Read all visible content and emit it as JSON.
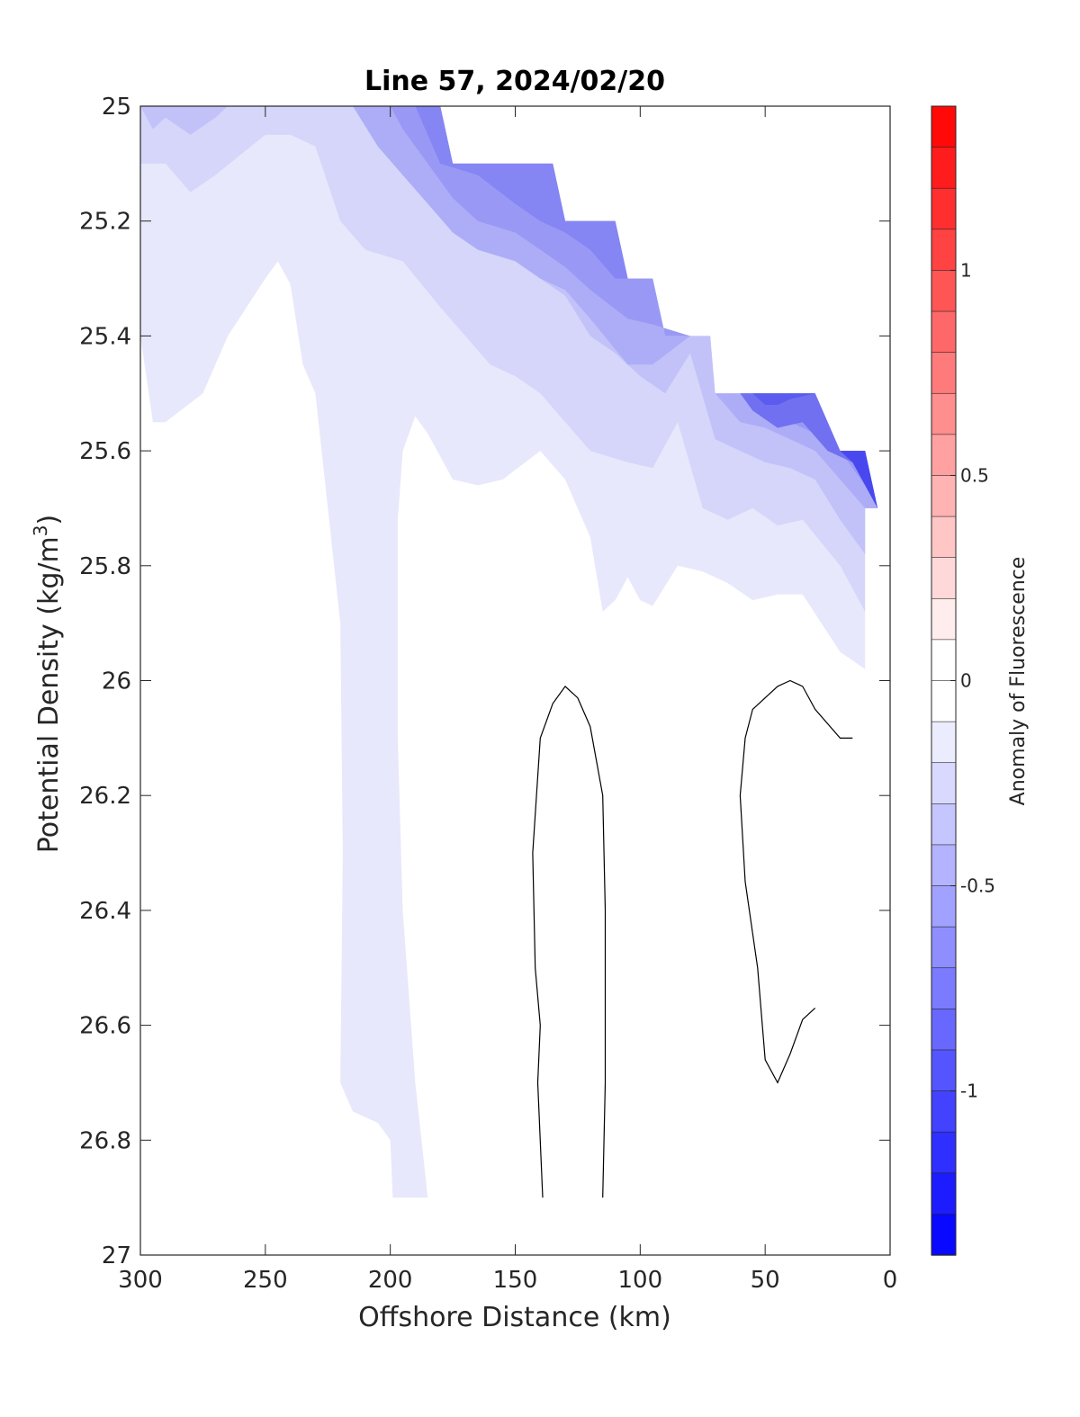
{
  "chart_data": {
    "type": "contour",
    "title": "Line 57, 2024/02/20",
    "xlabel": "Offshore Distance (km)",
    "ylabel_main": "Potential Density (kg/m",
    "ylabel_sup": "3",
    "ylabel_end": ")",
    "xlim": [
      300,
      0
    ],
    "ylim": [
      25,
      27
    ],
    "x_ticks": [
      300,
      250,
      200,
      150,
      100,
      50,
      0
    ],
    "y_ticks": [
      25,
      25.2,
      25.4,
      25.6,
      25.8,
      26,
      26.2,
      26.4,
      26.6,
      26.8,
      27
    ],
    "colorbar": {
      "label": "Anomaly of Fluorescence",
      "range": [
        -1.4,
        1.4
      ],
      "levels": 28,
      "ticks": [
        1,
        0.5,
        0,
        -0.5,
        -1
      ],
      "colors": {
        "negative": "#0000ff",
        "zero": "#ffffff",
        "positive": "#ff0000"
      }
    },
    "bands": [
      {
        "level": -0.1,
        "color": "#e8e8fc",
        "outline": [
          [
            300,
            25
          ],
          [
            300,
            25.4
          ],
          [
            295,
            25.55
          ],
          [
            290,
            25.55
          ],
          [
            275,
            25.5
          ],
          [
            265,
            25.4
          ],
          [
            250,
            25.3
          ],
          [
            245,
            25.27
          ],
          [
            240,
            25.31
          ],
          [
            235,
            25.45
          ],
          [
            230,
            25.5
          ],
          [
            225,
            25.7
          ],
          [
            220,
            25.9
          ],
          [
            219,
            26.3
          ],
          [
            220,
            26.7
          ],
          [
            215,
            26.75
          ],
          [
            205,
            26.77
          ],
          [
            200,
            26.8
          ],
          [
            199,
            26.9
          ],
          [
            185,
            26.9
          ],
          [
            190,
            26.7
          ],
          [
            195,
            26.4
          ],
          [
            197,
            26.1
          ],
          [
            197,
            25.72
          ],
          [
            195,
            25.6
          ],
          [
            190,
            25.54
          ],
          [
            185,
            25.57
          ],
          [
            175,
            25.65
          ],
          [
            165,
            25.66
          ],
          [
            155,
            25.65
          ],
          [
            140,
            25.6
          ],
          [
            130,
            25.65
          ],
          [
            120,
            25.75
          ],
          [
            115,
            25.88
          ],
          [
            110,
            25.86
          ],
          [
            105,
            25.82
          ],
          [
            100,
            25.86
          ],
          [
            95,
            25.87
          ],
          [
            85,
            25.8
          ],
          [
            75,
            25.81
          ],
          [
            65,
            25.83
          ],
          [
            55,
            25.86
          ],
          [
            45,
            25.85
          ],
          [
            35,
            25.85
          ],
          [
            20,
            25.95
          ],
          [
            10,
            25.98
          ],
          [
            10,
            25.7
          ],
          [
            5,
            25.7
          ],
          [
            10,
            25.6
          ],
          [
            20,
            25.6
          ],
          [
            30,
            25.5
          ],
          [
            70,
            25.5
          ],
          [
            72,
            25.4
          ],
          [
            90,
            25.4
          ],
          [
            95,
            25.3
          ],
          [
            105,
            25.3
          ],
          [
            110,
            25.2
          ],
          [
            130,
            25.2
          ],
          [
            135,
            25.1
          ],
          [
            175,
            25.1
          ],
          [
            180,
            25
          ]
        ]
      },
      {
        "level": -0.2,
        "color": "#d6d6fa",
        "outline": [
          [
            300,
            25
          ],
          [
            300,
            25.1
          ],
          [
            290,
            25.1
          ],
          [
            280,
            25.15
          ],
          [
            270,
            25.12
          ],
          [
            250,
            25.05
          ],
          [
            240,
            25.05
          ],
          [
            230,
            25.07
          ],
          [
            220,
            25.2
          ],
          [
            210,
            25.25
          ],
          [
            195,
            25.27
          ],
          [
            180,
            25.35
          ],
          [
            170,
            25.4
          ],
          [
            160,
            25.45
          ],
          [
            150,
            25.47
          ],
          [
            140,
            25.5
          ],
          [
            130,
            25.55
          ],
          [
            120,
            25.6
          ],
          [
            105,
            25.62
          ],
          [
            95,
            25.63
          ],
          [
            85,
            25.55
          ],
          [
            75,
            25.7
          ],
          [
            65,
            25.72
          ],
          [
            55,
            25.7
          ],
          [
            45,
            25.73
          ],
          [
            35,
            25.72
          ],
          [
            20,
            25.8
          ],
          [
            10,
            25.88
          ],
          [
            10,
            25.7
          ],
          [
            5,
            25.7
          ],
          [
            10,
            25.6
          ],
          [
            20,
            25.6
          ],
          [
            30,
            25.5
          ],
          [
            70,
            25.5
          ],
          [
            72,
            25.4
          ],
          [
            90,
            25.4
          ],
          [
            95,
            25.3
          ],
          [
            105,
            25.3
          ],
          [
            110,
            25.2
          ],
          [
            130,
            25.2
          ],
          [
            135,
            25.1
          ],
          [
            175,
            25.1
          ],
          [
            180,
            25
          ]
        ]
      },
      {
        "level": -0.3,
        "color": "#c2c2f9",
        "outline": [
          [
            300,
            25
          ],
          [
            295,
            25.04
          ],
          [
            290,
            25.02
          ],
          [
            280,
            25.05
          ],
          [
            270,
            25.02
          ],
          [
            265,
            25
          ],
          [
            180,
            25
          ],
          [
            175,
            25.1
          ],
          [
            170,
            25.16
          ],
          [
            160,
            25.22
          ],
          [
            150,
            25.27
          ],
          [
            140,
            25.3
          ],
          [
            130,
            25.33
          ],
          [
            120,
            25.4
          ],
          [
            110,
            25.43
          ],
          [
            100,
            25.47
          ],
          [
            90,
            25.5
          ],
          [
            80,
            25.43
          ],
          [
            70,
            25.58
          ],
          [
            60,
            25.6
          ],
          [
            50,
            25.62
          ],
          [
            40,
            25.63
          ],
          [
            30,
            25.65
          ],
          [
            20,
            25.72
          ],
          [
            10,
            25.78
          ],
          [
            10,
            25.7
          ],
          [
            5,
            25.7
          ],
          [
            10,
            25.6
          ],
          [
            20,
            25.6
          ],
          [
            30,
            25.5
          ],
          [
            70,
            25.5
          ],
          [
            72,
            25.4
          ],
          [
            90,
            25.4
          ],
          [
            95,
            25.3
          ],
          [
            105,
            25.3
          ],
          [
            110,
            25.2
          ],
          [
            130,
            25.2
          ],
          [
            135,
            25.1
          ],
          [
            175,
            25.1
          ],
          [
            180,
            25
          ]
        ]
      },
      {
        "level": -0.4,
        "color": "#adadf7",
        "outline": [
          [
            215,
            25
          ],
          [
            205,
            25.07
          ],
          [
            195,
            25.12
          ],
          [
            185,
            25.17
          ],
          [
            175,
            25.22
          ],
          [
            165,
            25.25
          ],
          [
            150,
            25.27
          ],
          [
            140,
            25.3
          ],
          [
            130,
            25.32
          ],
          [
            120,
            25.37
          ],
          [
            105,
            25.45
          ],
          [
            95,
            25.45
          ],
          [
            80,
            25.4
          ],
          [
            72,
            25.4
          ],
          [
            70,
            25.5
          ],
          [
            60,
            25.55
          ],
          [
            50,
            25.56
          ],
          [
            40,
            25.58
          ],
          [
            30,
            25.6
          ],
          [
            20,
            25.65
          ],
          [
            10,
            25.7
          ],
          [
            5,
            25.7
          ],
          [
            10,
            25.6
          ],
          [
            20,
            25.6
          ],
          [
            30,
            25.5
          ],
          [
            70,
            25.5
          ],
          [
            72,
            25.4
          ],
          [
            90,
            25.4
          ],
          [
            95,
            25.3
          ],
          [
            105,
            25.3
          ],
          [
            110,
            25.2
          ],
          [
            130,
            25.2
          ],
          [
            135,
            25.1
          ],
          [
            175,
            25.1
          ],
          [
            180,
            25
          ]
        ]
      },
      {
        "level": -0.5,
        "color": "#9999f5",
        "outline": [
          [
            200,
            25
          ],
          [
            195,
            25.04
          ],
          [
            185,
            25.1
          ],
          [
            175,
            25.16
          ],
          [
            165,
            25.2
          ],
          [
            150,
            25.22
          ],
          [
            140,
            25.25
          ],
          [
            130,
            25.28
          ],
          [
            120,
            25.32
          ],
          [
            105,
            25.37
          ],
          [
            95,
            25.38
          ],
          [
            80,
            25.4
          ],
          [
            72,
            25.4
          ],
          [
            70,
            25.5
          ],
          [
            60,
            25.5
          ],
          [
            50,
            25.52
          ],
          [
            40,
            25.55
          ],
          [
            30,
            25.57
          ],
          [
            20,
            25.6
          ],
          [
            10,
            25.66
          ],
          [
            5,
            25.7
          ],
          [
            10,
            25.6
          ],
          [
            20,
            25.6
          ],
          [
            30,
            25.5
          ],
          [
            70,
            25.5
          ],
          [
            72,
            25.4
          ],
          [
            90,
            25.4
          ],
          [
            95,
            25.3
          ],
          [
            105,
            25.3
          ],
          [
            110,
            25.2
          ],
          [
            130,
            25.2
          ],
          [
            135,
            25.1
          ],
          [
            175,
            25.1
          ],
          [
            180,
            25
          ]
        ]
      },
      {
        "level": -0.6,
        "color": "#8585f3",
        "outline": [
          [
            190,
            25
          ],
          [
            180,
            25.1
          ],
          [
            165,
            25.12
          ],
          [
            150,
            25.17
          ],
          [
            140,
            25.2
          ],
          [
            130,
            25.22
          ],
          [
            120,
            25.25
          ],
          [
            110,
            25.3
          ],
          [
            100,
            25.3
          ],
          [
            95,
            25.3
          ],
          [
            105,
            25.3
          ],
          [
            110,
            25.2
          ],
          [
            130,
            25.2
          ],
          [
            135,
            25.1
          ],
          [
            175,
            25.1
          ],
          [
            180,
            25
          ]
        ]
      },
      {
        "level": -0.7,
        "color": "#7070f1",
        "outline": [
          [
            60,
            25.5
          ],
          [
            55,
            25.53
          ],
          [
            45,
            25.56
          ],
          [
            35,
            25.55
          ],
          [
            25,
            25.6
          ],
          [
            15,
            25.62
          ],
          [
            10,
            25.65
          ],
          [
            5,
            25.7
          ],
          [
            10,
            25.6
          ],
          [
            20,
            25.6
          ],
          [
            30,
            25.5
          ]
        ]
      },
      {
        "level": -0.8,
        "color": "#5b5bf0",
        "outline": [
          [
            55,
            25.5
          ],
          [
            50,
            25.52
          ],
          [
            45,
            25.52
          ],
          [
            40,
            25.51
          ],
          [
            30,
            25.5
          ]
        ]
      },
      {
        "level": -0.9,
        "color": "#4848ee",
        "outline": [
          [
            20,
            25.6
          ],
          [
            15,
            25.62
          ],
          [
            10,
            25.66
          ],
          [
            5,
            25.7
          ],
          [
            10,
            25.6
          ]
        ]
      }
    ],
    "contour_lines": [
      {
        "level": 0,
        "points": [
          [
            139,
            26.9
          ],
          [
            141,
            26.7
          ],
          [
            140,
            26.6
          ],
          [
            142,
            26.5
          ],
          [
            143,
            26.3
          ],
          [
            140,
            26.1
          ],
          [
            135,
            26.04
          ],
          [
            130,
            26.01
          ],
          [
            125,
            26.03
          ],
          [
            120,
            26.08
          ],
          [
            115,
            26.2
          ],
          [
            114,
            26.4
          ],
          [
            114,
            26.7
          ],
          [
            115,
            26.9
          ]
        ]
      },
      {
        "level": 0,
        "points": [
          [
            30,
            26.57
          ],
          [
            35,
            26.59
          ],
          [
            40,
            26.65
          ],
          [
            45,
            26.7
          ],
          [
            50,
            26.66
          ],
          [
            53,
            26.5
          ],
          [
            58,
            26.35
          ],
          [
            60,
            26.2
          ],
          [
            58,
            26.1
          ],
          [
            55,
            26.05
          ],
          [
            45,
            26.01
          ],
          [
            40,
            26
          ],
          [
            35,
            26.01
          ],
          [
            30,
            26.05
          ],
          [
            20,
            26.1
          ],
          [
            15,
            26.1
          ]
        ]
      }
    ]
  }
}
